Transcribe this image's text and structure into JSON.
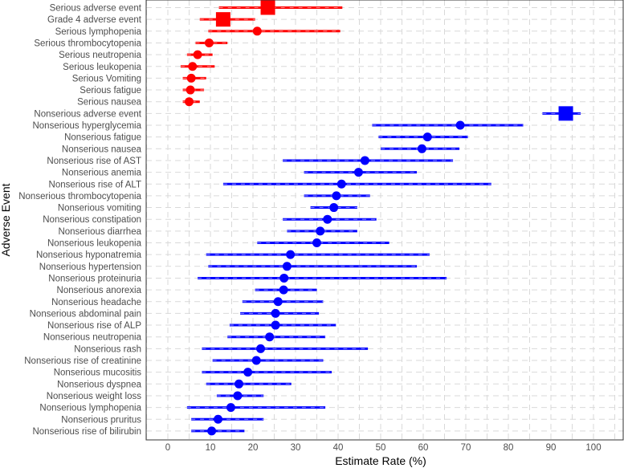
{
  "chart_data": {
    "type": "forest",
    "xlabel": "Estimate Rate (%)",
    "ylabel": "Adverse Event",
    "xlim": [
      -5,
      105
    ],
    "xticks": [
      0,
      10,
      20,
      30,
      40,
      50,
      60,
      70,
      80,
      90,
      100
    ],
    "grid": true,
    "legend": "none",
    "colors": {
      "serious": "#ff0000",
      "nonserious": "#0000ff"
    },
    "rows": [
      {
        "label": "Serious adverse event",
        "estimate": 23.5,
        "lower": 12.0,
        "upper": 41.0,
        "group": "serious",
        "marker": "square"
      },
      {
        "label": "Grade 4 adverse event",
        "estimate": 13.0,
        "lower": 7.5,
        "upper": 20.5,
        "group": "serious",
        "marker": "square"
      },
      {
        "label": "Serious lymphopenia",
        "estimate": 21.0,
        "lower": 9.5,
        "upper": 40.5,
        "group": "serious",
        "marker": "circle"
      },
      {
        "label": "Serious thrombocytopenia",
        "estimate": 9.7,
        "lower": 6.5,
        "upper": 14.0,
        "group": "serious",
        "marker": "circle"
      },
      {
        "label": "Serious neutropenia",
        "estimate": 7.0,
        "lower": 4.5,
        "upper": 10.5,
        "group": "serious",
        "marker": "circle"
      },
      {
        "label": "Serious leukopenia",
        "estimate": 5.8,
        "lower": 3.0,
        "upper": 11.0,
        "group": "serious",
        "marker": "circle"
      },
      {
        "label": "Serious Vomiting",
        "estimate": 5.5,
        "lower": 3.5,
        "upper": 9.0,
        "group": "serious",
        "marker": "circle"
      },
      {
        "label": "Serious fatigue",
        "estimate": 5.3,
        "lower": 3.5,
        "upper": 8.5,
        "group": "serious",
        "marker": "circle"
      },
      {
        "label": "Serious nausea",
        "estimate": 5.0,
        "lower": 3.5,
        "upper": 7.5,
        "group": "serious",
        "marker": "circle"
      },
      {
        "label": "Nonserious adverse event",
        "estimate": 93.5,
        "lower": 88.0,
        "upper": 97.0,
        "group": "nonserious",
        "marker": "square"
      },
      {
        "label": "Nonserious hyperglycemia",
        "estimate": 68.7,
        "lower": 48.0,
        "upper": 83.5,
        "group": "nonserious",
        "marker": "circle"
      },
      {
        "label": "Nonserious fatigue",
        "estimate": 61.0,
        "lower": 49.5,
        "upper": 70.5,
        "group": "nonserious",
        "marker": "circle"
      },
      {
        "label": "Nonserious nausea",
        "estimate": 59.7,
        "lower": 50.0,
        "upper": 68.5,
        "group": "nonserious",
        "marker": "circle"
      },
      {
        "label": "Nonserious rise of AST",
        "estimate": 46.3,
        "lower": 27.0,
        "upper": 67.0,
        "group": "nonserious",
        "marker": "circle"
      },
      {
        "label": "Nonserious anemia",
        "estimate": 44.8,
        "lower": 32.0,
        "upper": 58.5,
        "group": "nonserious",
        "marker": "circle"
      },
      {
        "label": "Nonserious rise of ALT",
        "estimate": 40.8,
        "lower": 13.0,
        "upper": 76.0,
        "group": "nonserious",
        "marker": "circle"
      },
      {
        "label": "Nonserious thrombocytopenia",
        "estimate": 39.6,
        "lower": 32.0,
        "upper": 47.5,
        "group": "nonserious",
        "marker": "circle"
      },
      {
        "label": "Nonserious vomiting",
        "estimate": 39.0,
        "lower": 33.5,
        "upper": 44.5,
        "group": "nonserious",
        "marker": "circle"
      },
      {
        "label": "Nonserious constipation",
        "estimate": 37.5,
        "lower": 27.0,
        "upper": 49.0,
        "group": "nonserious",
        "marker": "circle"
      },
      {
        "label": "Nonserious diarrhea",
        "estimate": 35.8,
        "lower": 28.0,
        "upper": 44.5,
        "group": "nonserious",
        "marker": "circle"
      },
      {
        "label": "Nonserious leukopenia",
        "estimate": 35.0,
        "lower": 21.0,
        "upper": 52.0,
        "group": "nonserious",
        "marker": "circle"
      },
      {
        "label": "Nonserious hyponatremia",
        "estimate": 28.8,
        "lower": 9.0,
        "upper": 61.5,
        "group": "nonserious",
        "marker": "circle"
      },
      {
        "label": "Nonserious hypertension",
        "estimate": 28.0,
        "lower": 9.5,
        "upper": 58.5,
        "group": "nonserious",
        "marker": "circle"
      },
      {
        "label": "Nonserious proteinuria",
        "estimate": 27.3,
        "lower": 7.0,
        "upper": 65.5,
        "group": "nonserious",
        "marker": "circle"
      },
      {
        "label": "Nonserious anorexia",
        "estimate": 27.2,
        "lower": 20.5,
        "upper": 35.0,
        "group": "nonserious",
        "marker": "circle"
      },
      {
        "label": "Nonserious headache",
        "estimate": 25.9,
        "lower": 17.5,
        "upper": 36.5,
        "group": "nonserious",
        "marker": "circle"
      },
      {
        "label": "Nonserious abdominal pain",
        "estimate": 25.3,
        "lower": 17.0,
        "upper": 35.5,
        "group": "nonserious",
        "marker": "circle"
      },
      {
        "label": "Nonserious rise of ALP",
        "estimate": 25.3,
        "lower": 14.5,
        "upper": 39.5,
        "group": "nonserious",
        "marker": "circle"
      },
      {
        "label": "Nonserious neutropenia",
        "estimate": 23.9,
        "lower": 14.0,
        "upper": 37.0,
        "group": "nonserious",
        "marker": "circle"
      },
      {
        "label": "Nonserious rash",
        "estimate": 21.8,
        "lower": 8.0,
        "upper": 47.0,
        "group": "nonserious",
        "marker": "circle"
      },
      {
        "label": "Nonserious rise of creatinine",
        "estimate": 20.8,
        "lower": 10.5,
        "upper": 36.5,
        "group": "nonserious",
        "marker": "circle"
      },
      {
        "label": "Nonserious mucositis",
        "estimate": 18.8,
        "lower": 8.0,
        "upper": 38.5,
        "group": "nonserious",
        "marker": "circle"
      },
      {
        "label": "Nonserious dyspnea",
        "estimate": 16.7,
        "lower": 9.0,
        "upper": 29.0,
        "group": "nonserious",
        "marker": "circle"
      },
      {
        "label": "Nonserious weight loss",
        "estimate": 16.4,
        "lower": 11.5,
        "upper": 22.5,
        "group": "nonserious",
        "marker": "circle"
      },
      {
        "label": "Nonserious lymphopenia",
        "estimate": 14.8,
        "lower": 4.5,
        "upper": 37.0,
        "group": "nonserious",
        "marker": "circle"
      },
      {
        "label": "Nonserious pruritus",
        "estimate": 11.8,
        "lower": 5.5,
        "upper": 22.5,
        "group": "nonserious",
        "marker": "circle"
      },
      {
        "label": "Nonserious rise of bilirubin",
        "estimate": 10.3,
        "lower": 5.5,
        "upper": 18.0,
        "group": "nonserious",
        "marker": "circle"
      }
    ]
  }
}
